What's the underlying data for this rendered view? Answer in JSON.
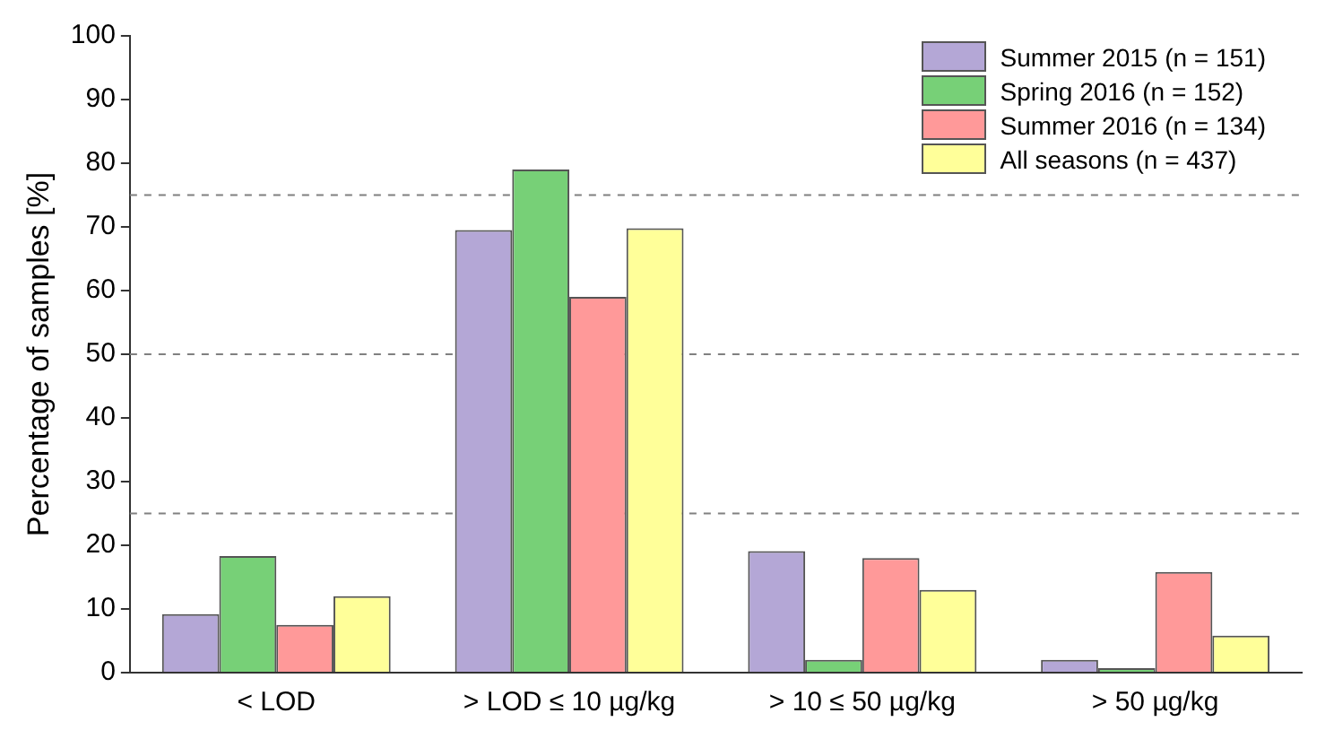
{
  "chart_data": {
    "type": "bar",
    "ylabel": "Percentage of samples [%]",
    "categories": [
      "< LOD",
      "> LOD ≤ 10 µg/kg",
      "> 10 ≤ 50 µg/kg",
      "> 50 µg/kg"
    ],
    "series": [
      {
        "name": "Summer 2015 (n = 151)",
        "color": "#b4a7d6",
        "values": [
          9.2,
          69.5,
          19.1,
          2
        ]
      },
      {
        "name": "Spring 2016 (n = 152)",
        "color": "#77d077",
        "values": [
          18.3,
          79,
          2,
          0.7
        ]
      },
      {
        "name": "Summer 2016 (n = 134)",
        "color": "#ff9999",
        "values": [
          7.5,
          59,
          18,
          15.8
        ]
      },
      {
        "name": "All seasons (n = 437)",
        "color": "#ffff99",
        "values": [
          12,
          69.8,
          13,
          5.8
        ]
      }
    ],
    "ylim": [
      0,
      100
    ],
    "yticks": [
      0,
      10,
      20,
      30,
      40,
      50,
      60,
      70,
      80,
      90,
      100
    ],
    "grid": false,
    "legend": "top right",
    "ref_lines": [
      {
        "axis": "y",
        "value": 25,
        "color": "#808080",
        "line_style": "dashed"
      },
      {
        "axis": "y",
        "value": 50,
        "color": "#808080",
        "line_style": "dashed"
      },
      {
        "axis": "y",
        "value": 75,
        "color": "#808080",
        "line_style": "dashed"
      }
    ]
  }
}
